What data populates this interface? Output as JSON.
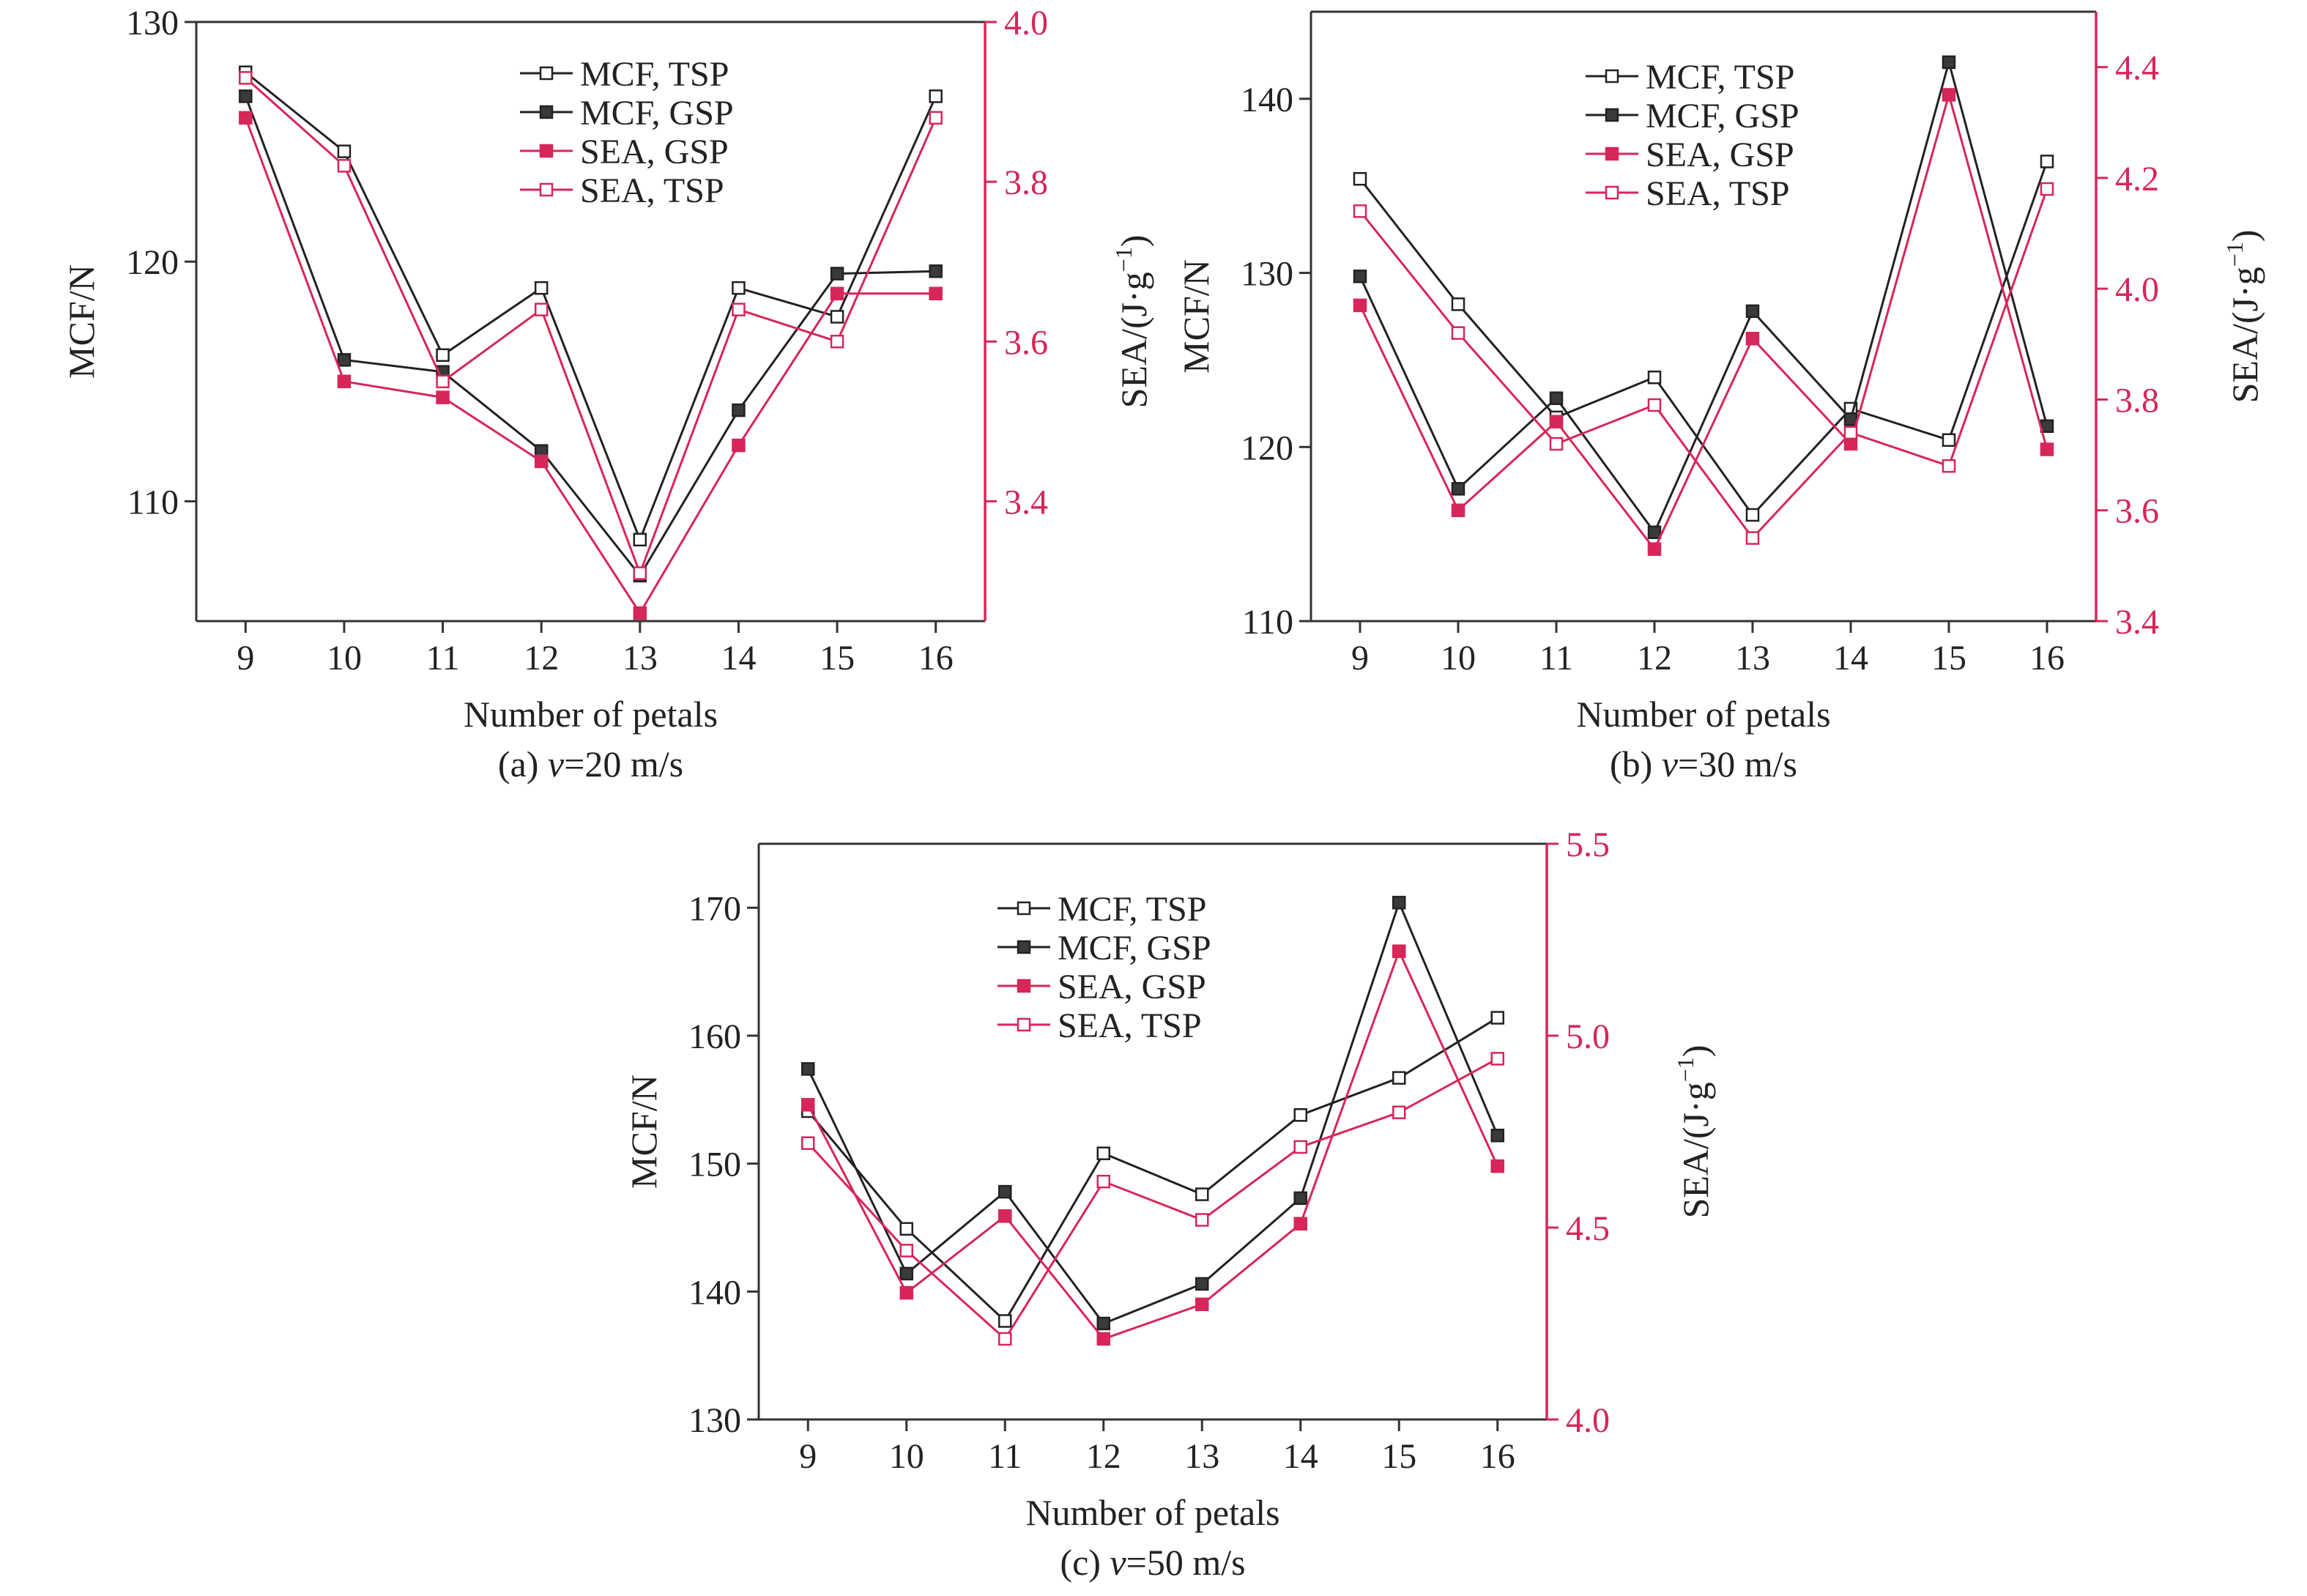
{
  "colors": {
    "mcf": "#222222",
    "sea": "#d6265a",
    "axis": "#333333"
  },
  "chart_data": [
    {
      "type": "line",
      "caption_prefix": "(a) ",
      "caption_var": "v",
      "caption_suffix": "=20 m/s",
      "xlabel": "Number of petals",
      "ylabel": "MCF/N",
      "y2label_main": "SEA/(J·g",
      "y2label_sup": "−1",
      "y2label_end": ")",
      "x": [
        9,
        10,
        11,
        12,
        13,
        14,
        15,
        16
      ],
      "xlim": [
        8.5,
        16.5
      ],
      "ylim": [
        105,
        130
      ],
      "y2lim": [
        3.25,
        4.0
      ],
      "yticks": [
        "110",
        "120",
        "130"
      ],
      "y2ticks": [
        "3.4",
        "3.6",
        "3.8",
        "4.0"
      ],
      "legend_position": "top-center",
      "series": [
        {
          "name": "MCF, TSP",
          "axis": "left",
          "marker": "open",
          "values": [
            127.9,
            124.6,
            116.1,
            118.9,
            108.4,
            118.9,
            117.7,
            126.9
          ]
        },
        {
          "name": "MCF, GSP",
          "axis": "left",
          "marker": "filled",
          "values": [
            126.9,
            115.9,
            115.4,
            112.1,
            106.9,
            113.8,
            119.5,
            119.6
          ]
        },
        {
          "name": "SEA, GSP",
          "axis": "right",
          "marker": "filled",
          "values": [
            3.88,
            3.55,
            3.53,
            3.45,
            3.26,
            3.47,
            3.66,
            3.66
          ]
        },
        {
          "name": "SEA, TSP",
          "axis": "right",
          "marker": "open",
          "values": [
            3.93,
            3.82,
            3.55,
            3.64,
            3.31,
            3.64,
            3.6,
            3.88
          ]
        }
      ]
    },
    {
      "type": "line",
      "caption_prefix": "(b) ",
      "caption_var": "v",
      "caption_suffix": "=30 m/s",
      "xlabel": "Number of petals",
      "ylabel": "MCF/N",
      "y2label_main": "SEA/(J·g",
      "y2label_sup": "−1",
      "y2label_end": ")",
      "x": [
        9,
        10,
        11,
        12,
        13,
        14,
        15,
        16
      ],
      "xlim": [
        8.5,
        16.5
      ],
      "ylim": [
        110,
        145
      ],
      "y2lim": [
        3.4,
        4.5
      ],
      "yticks": [
        "110",
        "120",
        "130",
        "140"
      ],
      "y2ticks": [
        "3.4",
        "3.6",
        "3.8",
        "4.0",
        "4.2",
        "4.4"
      ],
      "legend_position": "top-center",
      "series": [
        {
          "name": "MCF, TSP",
          "axis": "left",
          "marker": "open",
          "values": [
            135.4,
            128.2,
            121.7,
            124.0,
            116.1,
            122.2,
            120.4,
            136.4
          ]
        },
        {
          "name": "MCF, GSP",
          "axis": "left",
          "marker": "filled",
          "values": [
            129.8,
            117.6,
            122.8,
            115.1,
            127.8,
            121.6,
            142.1,
            121.2
          ]
        },
        {
          "name": "SEA, GSP",
          "axis": "right",
          "marker": "filled",
          "values": [
            3.97,
            3.6,
            3.76,
            3.53,
            3.91,
            3.72,
            4.35,
            3.71
          ]
        },
        {
          "name": "SEA, TSP",
          "axis": "right",
          "marker": "open",
          "values": [
            4.14,
            3.92,
            3.72,
            3.79,
            3.55,
            3.74,
            3.68,
            4.18
          ]
        }
      ]
    },
    {
      "type": "line",
      "caption_prefix": "(c) ",
      "caption_var": "v",
      "caption_suffix": "=50 m/s",
      "xlabel": "Number of petals",
      "ylabel": "MCF/N",
      "y2label_main": "SEA/(J·g",
      "y2label_sup": "−1",
      "y2label_end": ")",
      "x": [
        9,
        10,
        11,
        12,
        13,
        14,
        15,
        16
      ],
      "xlim": [
        8.5,
        16.5
      ],
      "ylim": [
        130,
        175
      ],
      "y2lim": [
        4.0,
        5.5
      ],
      "yticks": [
        "130",
        "140",
        "150",
        "160",
        "170"
      ],
      "y2ticks": [
        "4.0",
        "4.5",
        "5.0",
        "5.5"
      ],
      "legend_position": "top-center",
      "series": [
        {
          "name": "MCF, TSP",
          "axis": "left",
          "marker": "open",
          "values": [
            154.1,
            144.9,
            137.7,
            150.8,
            147.6,
            153.8,
            156.7,
            161.4
          ]
        },
        {
          "name": "MCF, GSP",
          "axis": "left",
          "marker": "filled",
          "values": [
            157.4,
            141.4,
            147.8,
            137.5,
            140.6,
            147.3,
            170.4,
            152.2
          ]
        },
        {
          "name": "SEA, GSP",
          "axis": "right",
          "marker": "filled",
          "values": [
            4.82,
            4.33,
            4.53,
            4.21,
            4.3,
            4.51,
            5.22,
            4.66
          ]
        },
        {
          "name": "SEA, TSP",
          "axis": "right",
          "marker": "open",
          "values": [
            4.72,
            4.44,
            4.21,
            4.62,
            4.52,
            4.71,
            4.8,
            4.94
          ]
        }
      ]
    }
  ]
}
